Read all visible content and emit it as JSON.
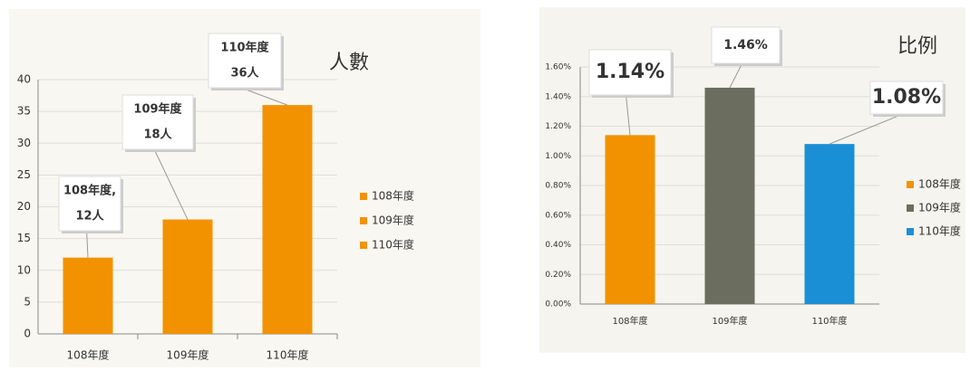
{
  "chart_data": [
    {
      "type": "bar",
      "title": "人數",
      "categories": [
        "108年度",
        "109年度",
        "110年度"
      ],
      "values": [
        12,
        18,
        36
      ],
      "value_labels": [
        "12人",
        "18人",
        "36人"
      ],
      "callout_titles": [
        "108年度,",
        "109年度",
        "110年度"
      ],
      "colors": [
        "#f39200",
        "#f39200",
        "#f39200"
      ],
      "ylim": [
        0,
        40
      ],
      "yticks": [
        0,
        5,
        10,
        15,
        20,
        25,
        30,
        35,
        40
      ],
      "grid": true,
      "legend": "right"
    },
    {
      "type": "bar",
      "title": "比例",
      "categories": [
        "108年度",
        "109年度",
        "110年度"
      ],
      "values": [
        1.14,
        1.46,
        1.08
      ],
      "value_labels": [
        "1.14%",
        "1.46%",
        "1.08%"
      ],
      "colors": [
        "#f39200",
        "#6b6e5e",
        "#1a8fd6"
      ],
      "ylim": [
        0,
        1.6
      ],
      "yticks": [
        {
          "value": 0,
          "label": "0.00%"
        },
        {
          "value": 0.2,
          "label": "0.20%"
        },
        {
          "value": 0.4,
          "label": "0.40%"
        },
        {
          "value": 0.6,
          "label": "0.60%"
        },
        {
          "value": 0.8,
          "label": "0.80%"
        },
        {
          "value": 1.0,
          "label": "1.00%"
        },
        {
          "value": 1.2,
          "label": "1.20%"
        },
        {
          "value": 1.4,
          "label": "1.40%"
        },
        {
          "value": 1.6,
          "label": "1.60%"
        }
      ],
      "grid": true,
      "legend": "right"
    }
  ]
}
